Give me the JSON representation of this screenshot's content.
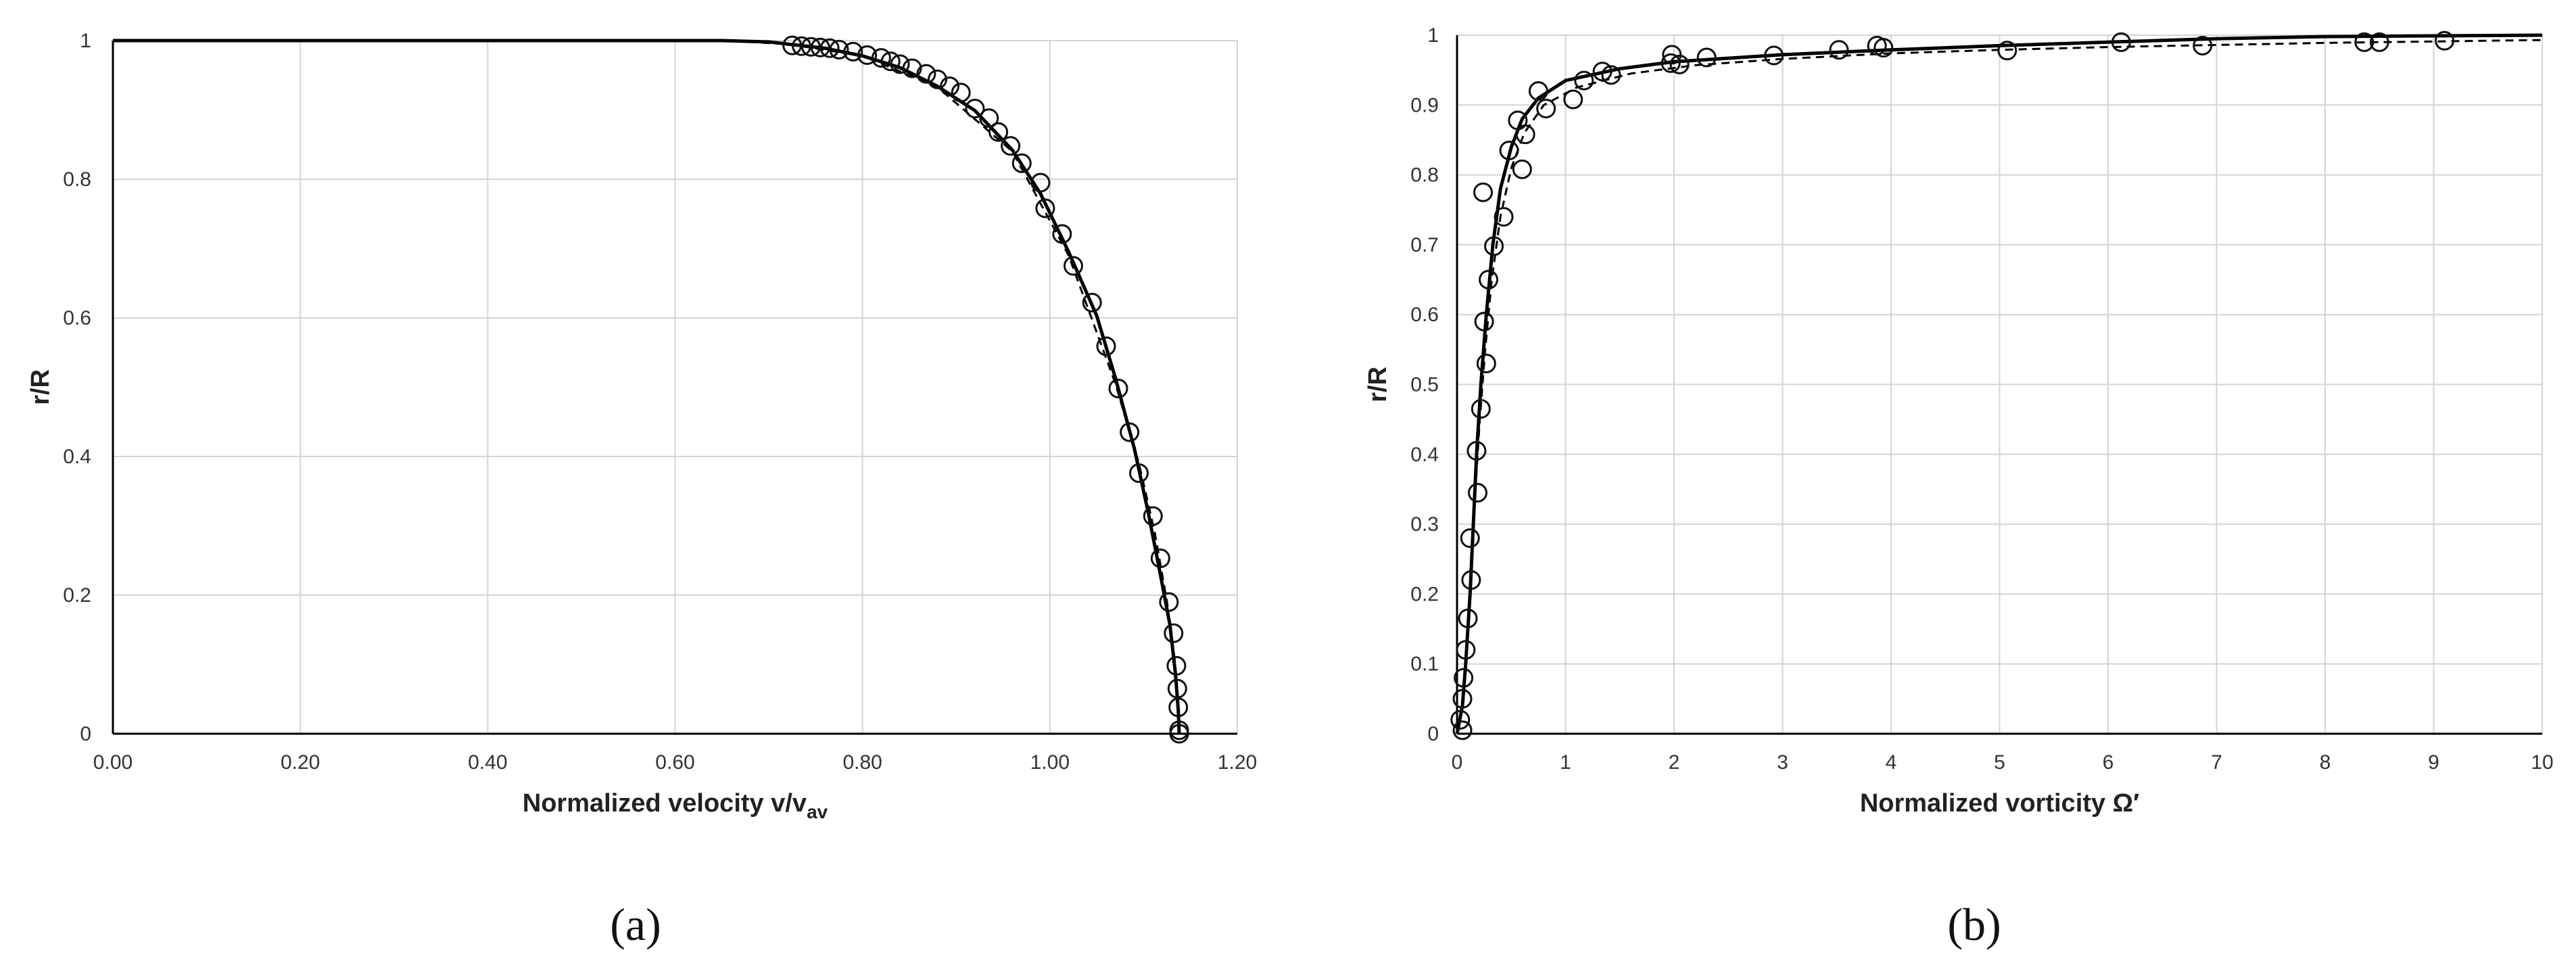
{
  "chart_data": [
    {
      "type": "line",
      "panel_label": "(a)",
      "xlabel": "Normalized velocity v/v",
      "xlabel_sub": "av",
      "ylabel": "r/R",
      "xlim": [
        0,
        1.2
      ],
      "ylim": [
        0,
        1
      ],
      "xticks": [
        "0.00",
        "0.20",
        "0.40",
        "0.60",
        "0.80",
        "1.00",
        "1.20"
      ],
      "yticks": [
        "0",
        "0.2",
        "0.4",
        "0.6",
        "0.8",
        "1"
      ],
      "grid": true,
      "legend": "none",
      "series": [
        {
          "style": "solid",
          "points": [
            [
              0,
              1
            ],
            [
              0.5,
              1
            ],
            [
              0.65,
              1
            ],
            [
              0.7,
              0.998
            ],
            [
              0.72,
              0.995
            ],
            [
              0.76,
              0.989
            ],
            [
              0.8,
              0.978
            ],
            [
              0.84,
              0.961
            ],
            [
              0.88,
              0.934
            ],
            [
              0.92,
              0.899
            ],
            [
              0.96,
              0.842
            ],
            [
              0.99,
              0.779
            ],
            [
              1.02,
              0.695
            ],
            [
              1.05,
              0.603
            ],
            [
              1.07,
              0.513
            ],
            [
              1.09,
              0.412
            ],
            [
              1.105,
              0.319
            ],
            [
              1.118,
              0.229
            ],
            [
              1.128,
              0.158
            ],
            [
              1.134,
              0.087
            ],
            [
              1.137,
              0.034
            ],
            [
              1.138,
              0
            ]
          ]
        },
        {
          "style": "dashed",
          "points": [
            [
              0,
              1
            ],
            [
              0.65,
              1
            ],
            [
              0.72,
              0.995
            ],
            [
              0.8,
              0.978
            ],
            [
              0.88,
              0.933
            ],
            [
              0.96,
              0.84
            ],
            [
              1.02,
              0.69
            ],
            [
              1.07,
              0.505
            ],
            [
              1.095,
              0.39
            ],
            [
              1.112,
              0.29
            ],
            [
              1.125,
              0.19
            ],
            [
              1.133,
              0.11
            ],
            [
              1.137,
              0.04
            ],
            [
              1.138,
              0
            ]
          ]
        },
        {
          "style": "markers",
          "points": [
            [
              0.725,
              0.993
            ],
            [
              0.735,
              0.992
            ],
            [
              0.745,
              0.991
            ],
            [
              0.755,
              0.99
            ],
            [
              0.765,
              0.989
            ],
            [
              0.775,
              0.987
            ],
            [
              0.79,
              0.984
            ],
            [
              0.805,
              0.979
            ],
            [
              0.82,
              0.975
            ],
            [
              0.83,
              0.97
            ],
            [
              0.84,
              0.966
            ],
            [
              0.853,
              0.96
            ],
            [
              0.868,
              0.952
            ],
            [
              0.88,
              0.944
            ],
            [
              0.893,
              0.934
            ],
            [
              0.905,
              0.925
            ],
            [
              0.92,
              0.902
            ],
            [
              0.935,
              0.888
            ],
            [
              0.945,
              0.868
            ],
            [
              0.958,
              0.848
            ],
            [
              0.97,
              0.823
            ],
            [
              0.99,
              0.795
            ],
            [
              0.995,
              0.758
            ],
            [
              1.013,
              0.721
            ],
            [
              1.025,
              0.675
            ],
            [
              1.045,
              0.622
            ],
            [
              1.06,
              0.559
            ],
            [
              1.073,
              0.498
            ],
            [
              1.085,
              0.435
            ],
            [
              1.095,
              0.376
            ],
            [
              1.11,
              0.314
            ],
            [
              1.118,
              0.253
            ],
            [
              1.127,
              0.19
            ],
            [
              1.132,
              0.145
            ],
            [
              1.135,
              0.098
            ],
            [
              1.136,
              0.065
            ],
            [
              1.137,
              0.038
            ],
            [
              1.138,
              0.005
            ],
            [
              1.138,
              0.0
            ]
          ]
        }
      ]
    },
    {
      "type": "line",
      "panel_label": "(b)",
      "xlabel": "Normalized vorticity Ω′",
      "ylabel": "r/R",
      "xlim": [
        0,
        10
      ],
      "ylim": [
        0,
        1
      ],
      "xticks": [
        "0",
        "1",
        "2",
        "3",
        "4",
        "5",
        "6",
        "7",
        "8",
        "9",
        "10"
      ],
      "yticks": [
        "0",
        "0.1",
        "0.2",
        "0.3",
        "0.4",
        "0.5",
        "0.6",
        "0.7",
        "0.8",
        "0.9",
        "1"
      ],
      "grid": true,
      "legend": "none",
      "series": [
        {
          "style": "solid",
          "points": [
            [
              0,
              0
            ],
            [
              0.05,
              0.04
            ],
            [
              0.08,
              0.1
            ],
            [
              0.12,
              0.2
            ],
            [
              0.15,
              0.3
            ],
            [
              0.18,
              0.4
            ],
            [
              0.22,
              0.5
            ],
            [
              0.27,
              0.6
            ],
            [
              0.33,
              0.7
            ],
            [
              0.4,
              0.78
            ],
            [
              0.5,
              0.84
            ],
            [
              0.6,
              0.88
            ],
            [
              0.75,
              0.91
            ],
            [
              1.0,
              0.935
            ],
            [
              1.5,
              0.952
            ],
            [
              2.0,
              0.962
            ],
            [
              3.0,
              0.972
            ],
            [
              4.0,
              0.979
            ],
            [
              5.0,
              0.985
            ],
            [
              6.0,
              0.99
            ],
            [
              7.0,
              0.995
            ],
            [
              8.0,
              0.998
            ],
            [
              9.0,
              0.999
            ],
            [
              10.0,
              1.0
            ]
          ]
        },
        {
          "style": "dashed",
          "points": [
            [
              0,
              0
            ],
            [
              0.06,
              0.05
            ],
            [
              0.1,
              0.15
            ],
            [
              0.14,
              0.25
            ],
            [
              0.17,
              0.35
            ],
            [
              0.21,
              0.45
            ],
            [
              0.26,
              0.55
            ],
            [
              0.32,
              0.65
            ],
            [
              0.4,
              0.74
            ],
            [
              0.5,
              0.81
            ],
            [
              0.62,
              0.86
            ],
            [
              0.8,
              0.9
            ],
            [
              1.1,
              0.925
            ],
            [
              1.6,
              0.945
            ],
            [
              2.2,
              0.957
            ],
            [
              3.0,
              0.966
            ],
            [
              4.0,
              0.974
            ],
            [
              5.0,
              0.979
            ],
            [
              6.0,
              0.983
            ],
            [
              7.0,
              0.986
            ],
            [
              8.0,
              0.989
            ],
            [
              9.0,
              0.991
            ],
            [
              10.0,
              0.993
            ]
          ]
        },
        {
          "style": "markers",
          "points": [
            [
              0.05,
              0.005
            ],
            [
              0.03,
              0.02
            ],
            [
              0.05,
              0.05
            ],
            [
              0.06,
              0.08
            ],
            [
              0.08,
              0.12
            ],
            [
              0.1,
              0.165
            ],
            [
              0.13,
              0.22
            ],
            [
              0.12,
              0.28
            ],
            [
              0.19,
              0.345
            ],
            [
              0.18,
              0.405
            ],
            [
              0.22,
              0.465
            ],
            [
              0.27,
              0.53
            ],
            [
              0.25,
              0.59
            ],
            [
              0.29,
              0.65
            ],
            [
              0.34,
              0.698
            ],
            [
              0.43,
              0.74
            ],
            [
              0.24,
              0.775
            ],
            [
              0.6,
              0.808
            ],
            [
              0.48,
              0.835
            ],
            [
              0.63,
              0.858
            ],
            [
              0.56,
              0.878
            ],
            [
              0.82,
              0.895
            ],
            [
              1.07,
              0.908
            ],
            [
              0.75,
              0.92
            ],
            [
              1.17,
              0.935
            ],
            [
              1.42,
              0.943
            ],
            [
              1.34,
              0.948
            ],
            [
              1.97,
              0.96
            ],
            [
              2.05,
              0.958
            ],
            [
              2.3,
              0.968
            ],
            [
              1.98,
              0.972
            ],
            [
              2.92,
              0.971
            ],
            [
              3.52,
              0.979
            ],
            [
              3.87,
              0.985
            ],
            [
              3.93,
              0.982
            ],
            [
              5.07,
              0.978
            ],
            [
              6.12,
              0.99
            ],
            [
              6.87,
              0.985
            ],
            [
              8.36,
              0.99
            ],
            [
              8.5,
              0.99
            ],
            [
              9.1,
              0.992
            ]
          ]
        }
      ]
    }
  ]
}
